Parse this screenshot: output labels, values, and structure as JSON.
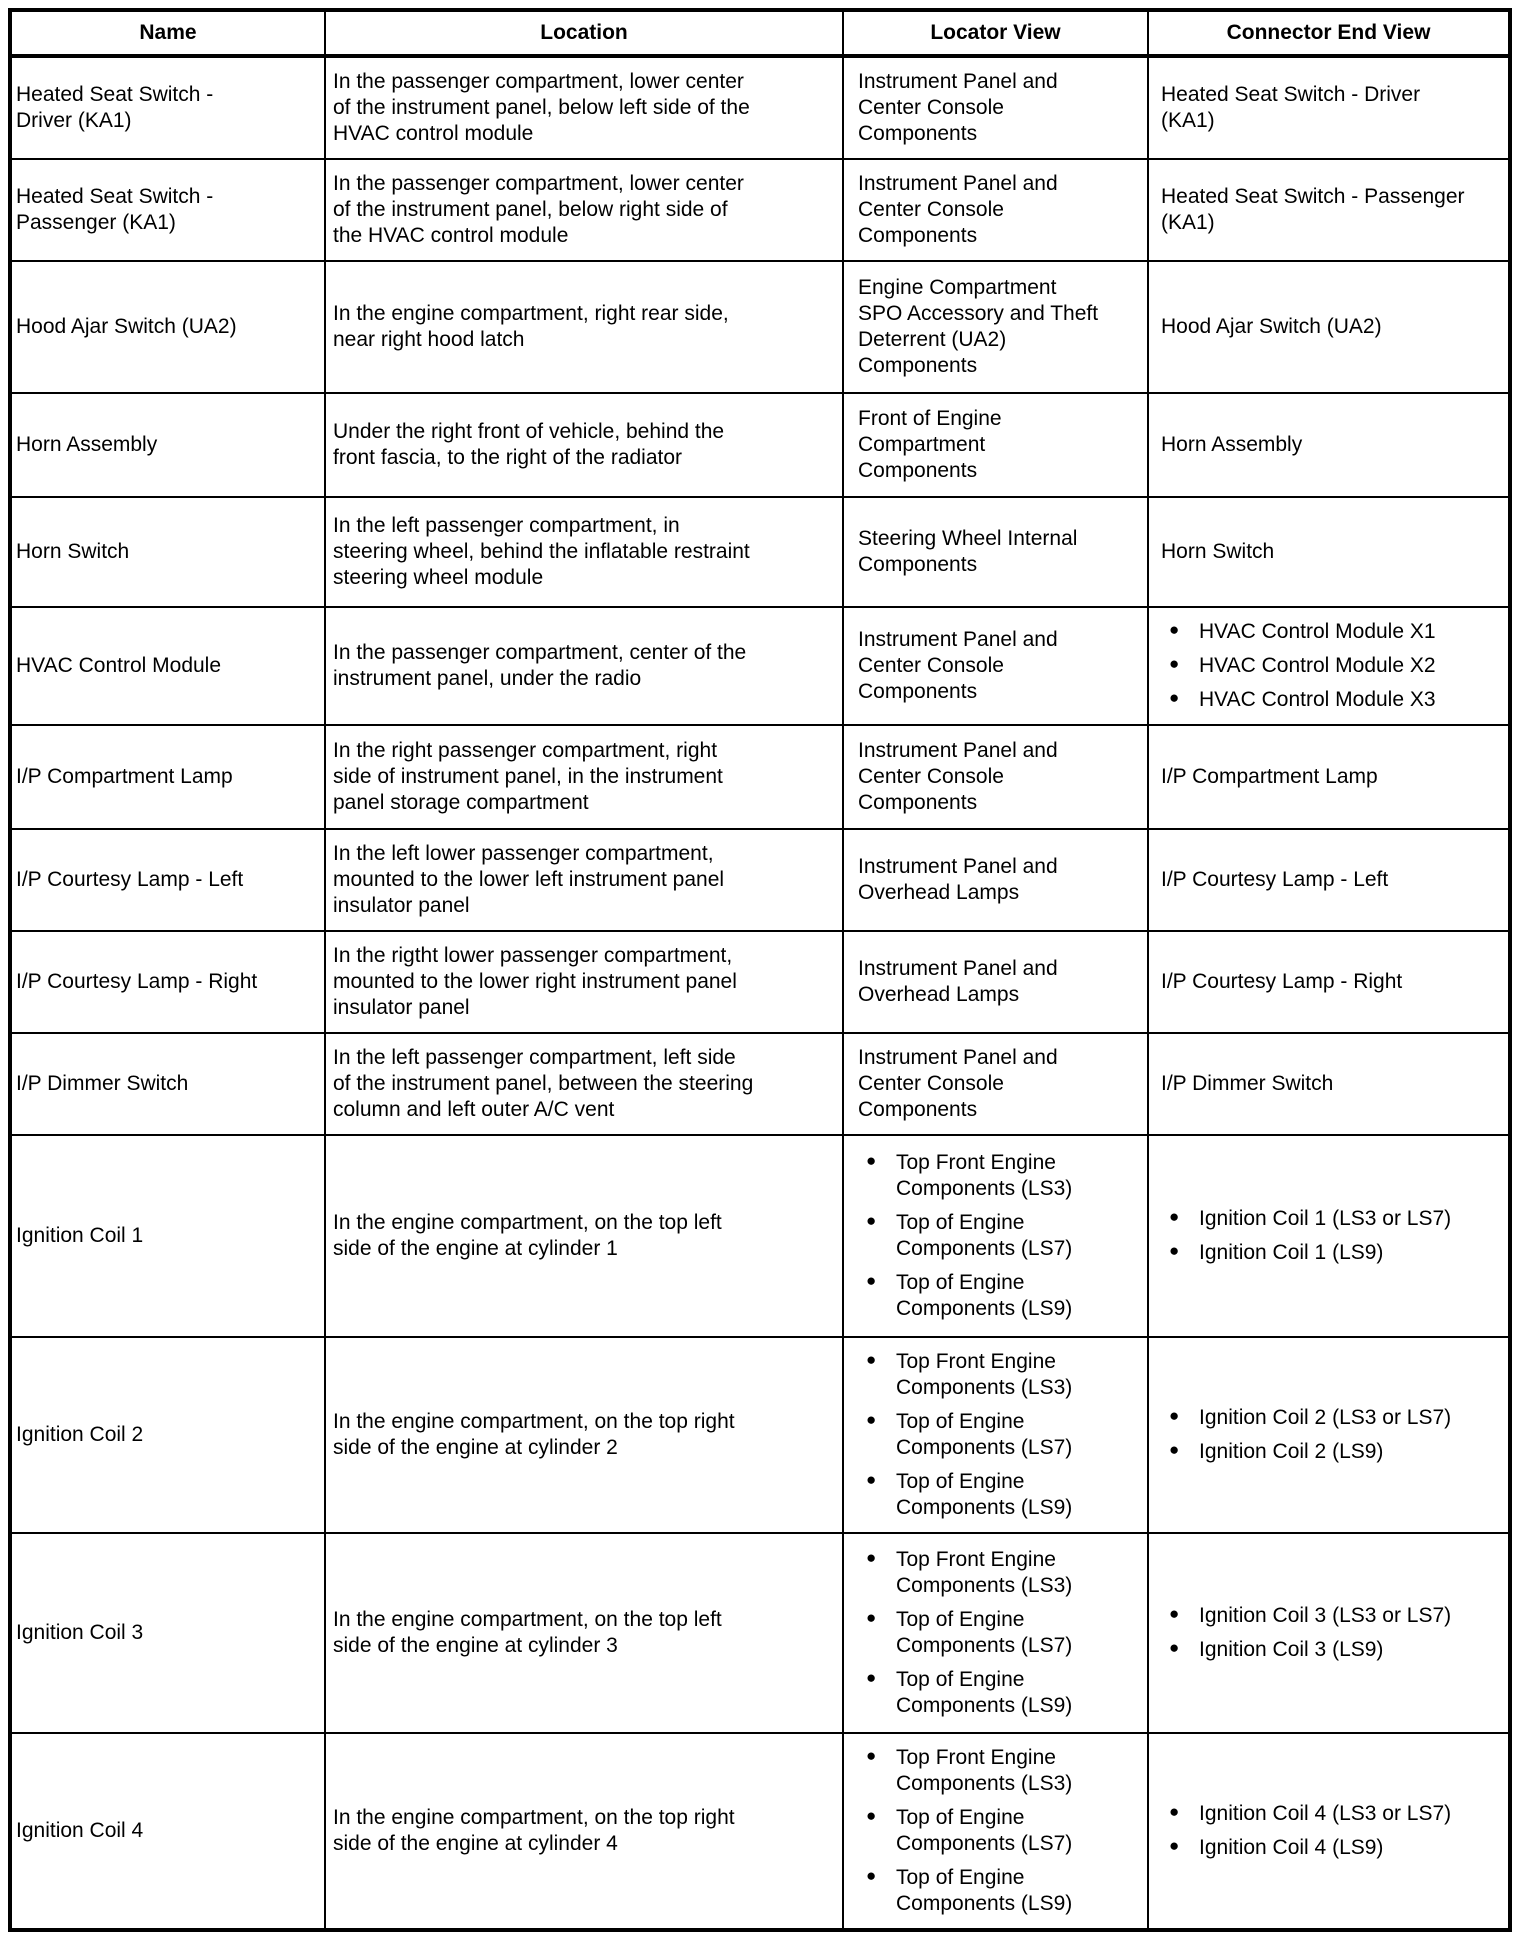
{
  "table": {
    "columns": [
      "Name",
      "Location",
      "Locator View",
      "Connector End View"
    ],
    "icons": {
      "bullet": "●"
    },
    "rows": [
      {
        "name": "Heated Seat Switch - Driver (KA1)",
        "location": "In the passenger compartment, lower center of the instrument panel, below left side of the HVAC control module",
        "locator_view": [
          "Instrument Panel and Center Console Components"
        ],
        "connector_end_view": [
          "Heated Seat Switch - Driver (KA1)"
        ]
      },
      {
        "name": "Heated Seat Switch - Passenger (KA1)",
        "location": "In the passenger compartment, lower center of the instrument panel, below right side of the HVAC control module",
        "locator_view": [
          "Instrument Panel and Center Console Components"
        ],
        "connector_end_view": [
          "Heated Seat Switch - Passenger (KA1)"
        ]
      },
      {
        "name": "Hood Ajar Switch (UA2)",
        "location": "In the engine compartment, right rear side, near right hood latch",
        "locator_view": [
          "Engine Compartment SPO Accessory and Theft Deterrent (UA2) Components"
        ],
        "connector_end_view": [
          "Hood Ajar Switch (UA2)"
        ]
      },
      {
        "name": "Horn Assembly",
        "location": "Under the right front of vehicle, behind the front fascia, to the right of the radiator",
        "locator_view": [
          "Front of Engine Compartment Components"
        ],
        "connector_end_view": [
          "Horn Assembly"
        ]
      },
      {
        "name": "Horn Switch",
        "location": "In the left passenger compartment, in steering wheel, behind the inflatable restraint steering wheel module",
        "locator_view": [
          "Steering Wheel Internal Components"
        ],
        "connector_end_view": [
          "Horn Switch"
        ]
      },
      {
        "name": "HVAC Control Module",
        "location": "In the passenger compartment, center of the instrument panel, under the radio",
        "locator_view": [
          "Instrument Panel and Center Console Components"
        ],
        "connector_end_view": [
          "HVAC Control Module X1",
          "HVAC Control Module X2",
          "HVAC Control Module X3"
        ]
      },
      {
        "name": "I/P Compartment Lamp",
        "location": "In the right passenger compartment, right side of instrument panel, in the instrument panel storage compartment",
        "locator_view": [
          "Instrument Panel and Center Console Components"
        ],
        "connector_end_view": [
          "I/P Compartment Lamp"
        ]
      },
      {
        "name": "I/P Courtesy Lamp - Left",
        "location": "In the left lower passenger compartment, mounted to the lower left instrument panel insulator panel",
        "locator_view": [
          "Instrument Panel and Overhead Lamps"
        ],
        "connector_end_view": [
          "I/P Courtesy Lamp - Left"
        ]
      },
      {
        "name": "I/P Courtesy Lamp - Right",
        "location": "In the rigtht lower passenger compartment, mounted to the lower right instrument panel insulator panel",
        "locator_view": [
          "Instrument Panel and Overhead Lamps"
        ],
        "connector_end_view": [
          "I/P Courtesy Lamp - Right"
        ]
      },
      {
        "name": "I/P Dimmer Switch",
        "location": "In the left passenger compartment, left side of the instrument panel, between the steering column and left outer A/C vent",
        "locator_view": [
          "Instrument Panel and Center Console Components"
        ],
        "connector_end_view": [
          "I/P Dimmer Switch"
        ]
      },
      {
        "name": "Ignition Coil 1",
        "location": "In the engine compartment, on the top left side of the engine at cylinder 1",
        "locator_view": [
          "Top Front Engine Components (LS3)",
          "Top of Engine Components (LS7)",
          "Top of Engine Components (LS9)"
        ],
        "connector_end_view": [
          "Ignition Coil 1 (LS3 or LS7)",
          "Ignition Coil 1 (LS9)"
        ]
      },
      {
        "name": "Ignition Coil 2",
        "location": "In the engine compartment, on the top right side of the engine at cylinder 2",
        "locator_view": [
          "Top Front Engine Components (LS3)",
          "Top of Engine Components (LS7)",
          "Top of Engine Components (LS9)"
        ],
        "connector_end_view": [
          "Ignition Coil 2 (LS3 or LS7)",
          "Ignition Coil 2 (LS9)"
        ]
      },
      {
        "name": "Ignition Coil 3",
        "location": "In the engine compartment, on the top left side of the engine at cylinder 3",
        "locator_view": [
          "Top Front Engine Components (LS3)",
          "Top of Engine Components (LS7)",
          "Top of Engine Components (LS9)"
        ],
        "connector_end_view": [
          "Ignition Coil 3 (LS3 or LS7)",
          "Ignition Coil 3 (LS9)"
        ]
      },
      {
        "name": "Ignition Coil 4",
        "location": "In the engine compartment, on the top right side of the engine at cylinder 4",
        "locator_view": [
          "Top Front Engine Components (LS3)",
          "Top of Engine Components (LS7)",
          "Top of Engine Components (LS9)"
        ],
        "connector_end_view": [
          "Ignition Coil 4 (LS3 or LS7)",
          "Ignition Coil 4 (LS9)"
        ]
      }
    ]
  }
}
